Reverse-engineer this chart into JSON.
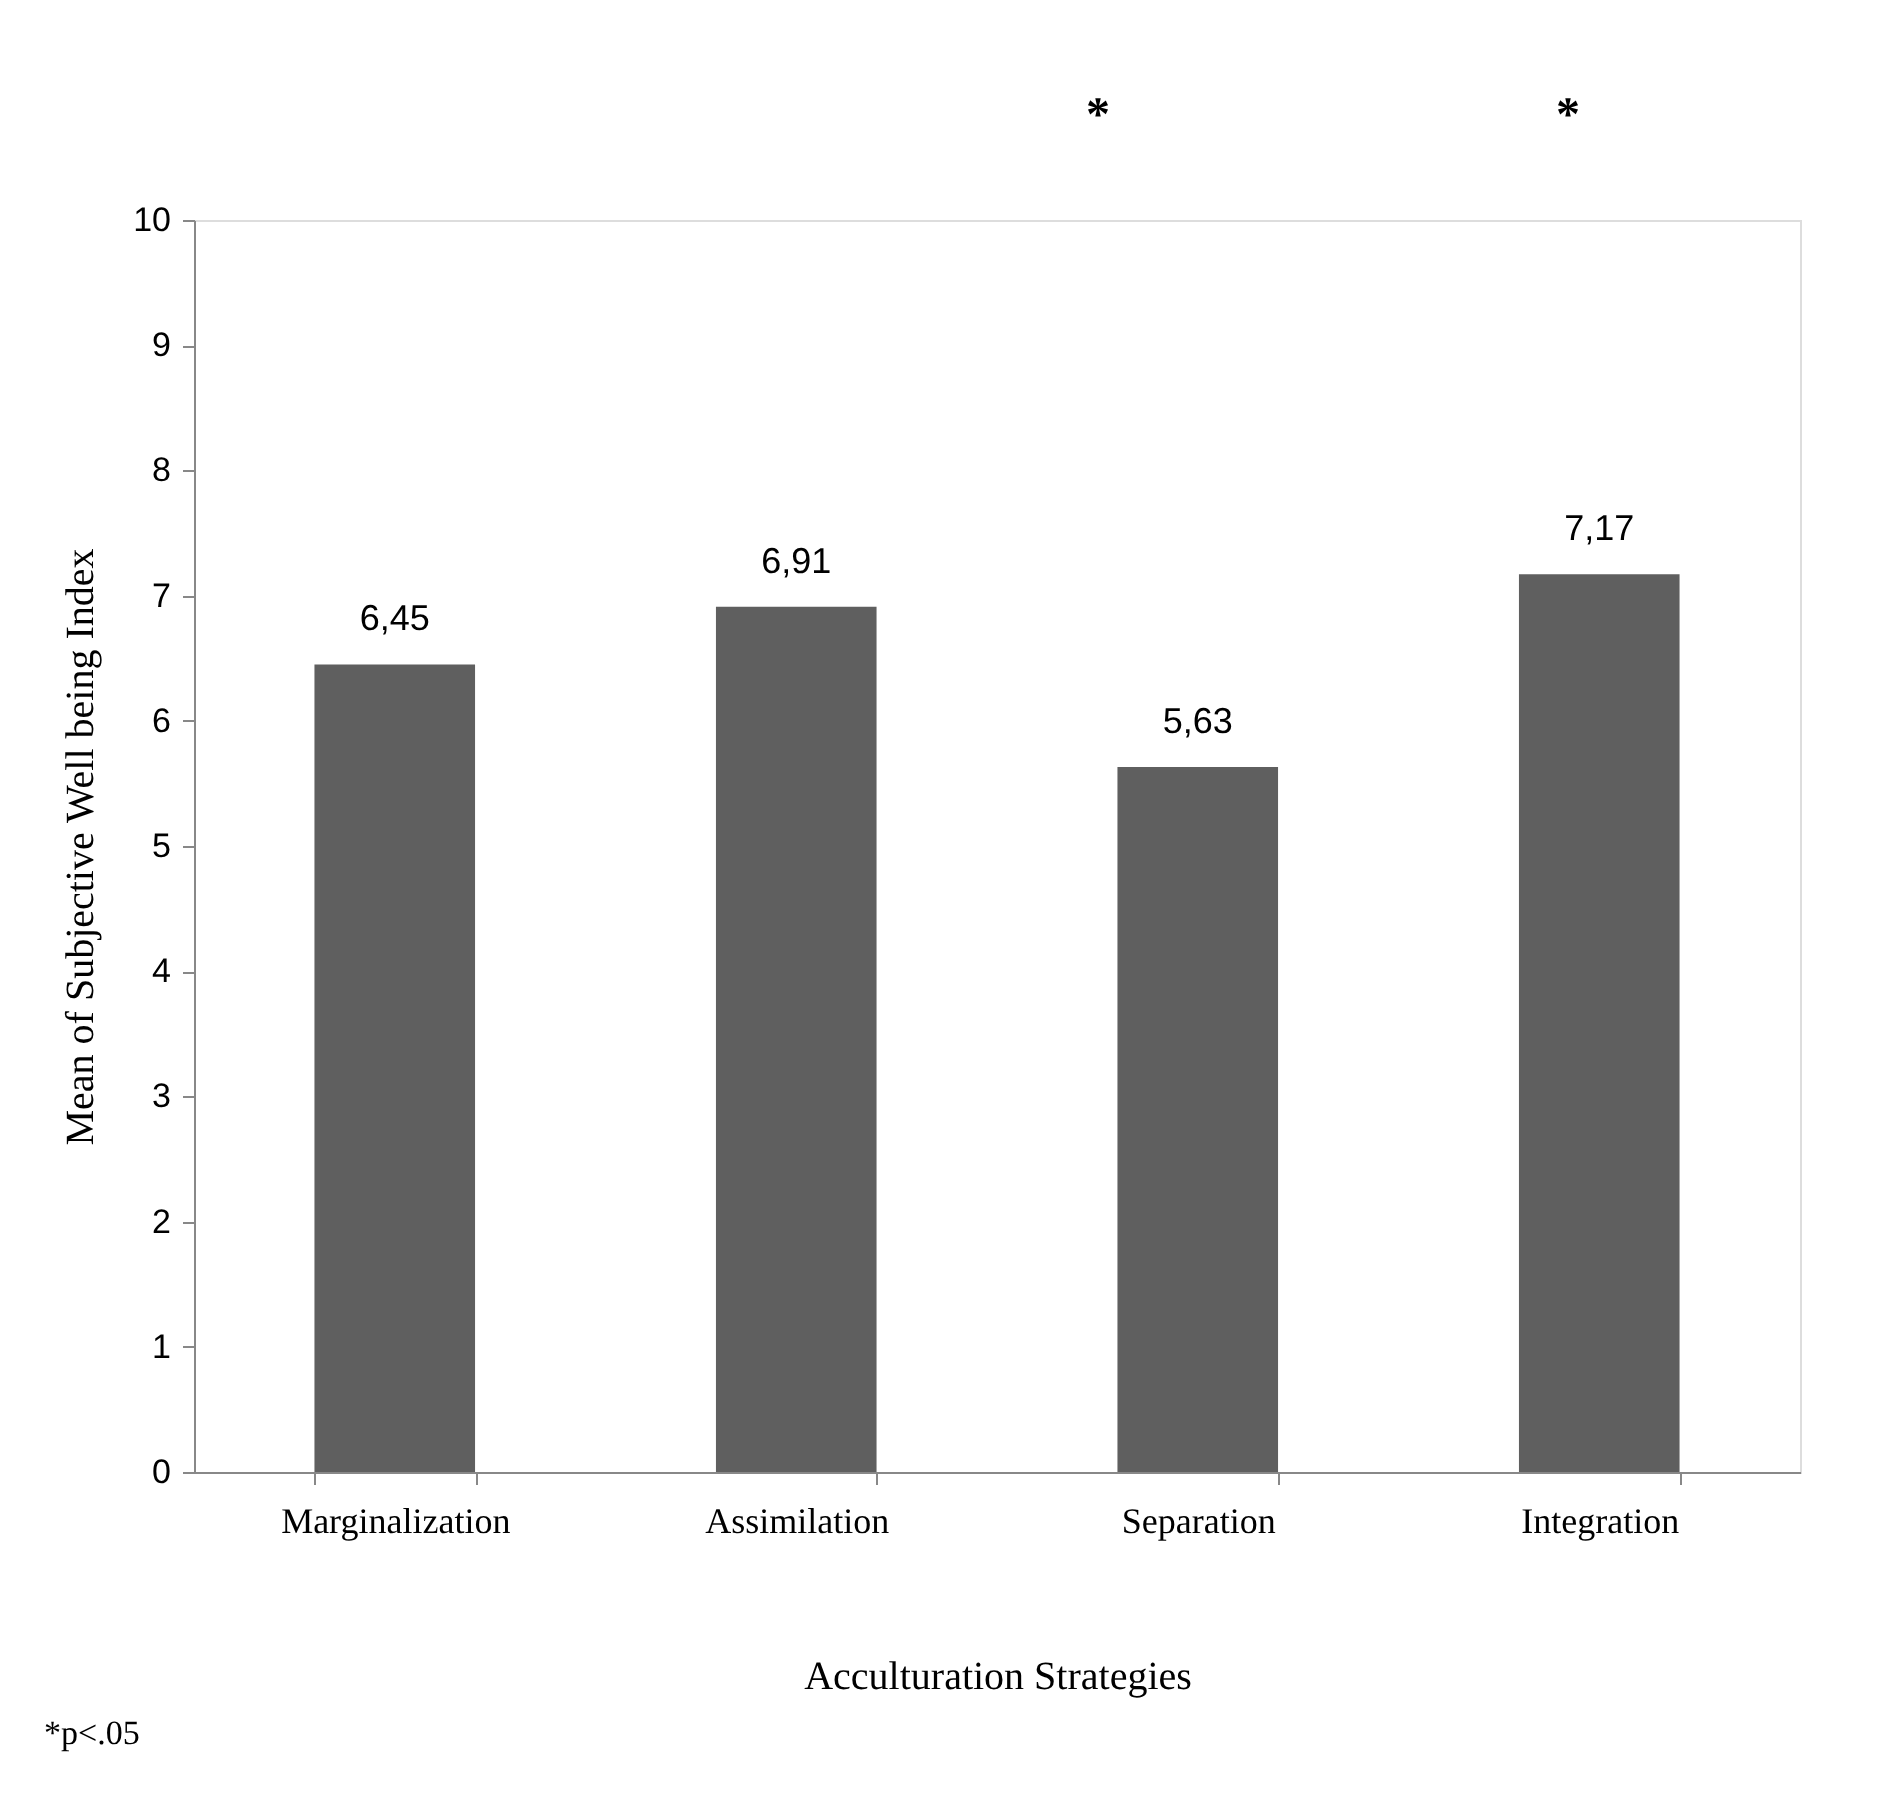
{
  "chart_data": {
    "type": "bar",
    "xlabel": "Acculturation Strategies",
    "ylabel": "Mean of Subjective Well being Index",
    "categories": [
      "Marginalization",
      "Assimilation",
      "Separation",
      "Integration"
    ],
    "values": [
      6.45,
      6.91,
      5.63,
      7.17
    ],
    "value_labels": [
      "6,45",
      "6,91",
      "5,63",
      "7,17"
    ],
    "color": "#5f5f5f",
    "ylim": [
      0,
      10
    ],
    "yticks": [
      0,
      1,
      2,
      3,
      4,
      5,
      6,
      7,
      8,
      9,
      10
    ],
    "grid": false,
    "annotations": [
      "*",
      "*",
      "*p<.05"
    ]
  }
}
